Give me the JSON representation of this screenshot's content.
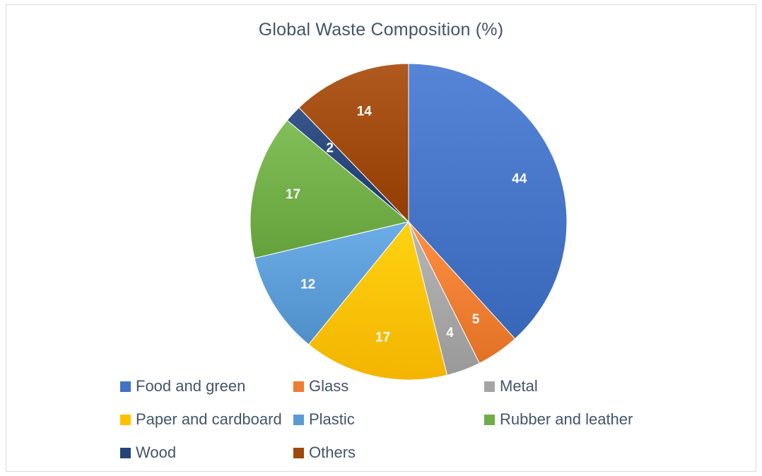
{
  "chart_data": {
    "type": "pie",
    "title": "Global Waste Composition (%)",
    "categories": [
      "Food and green",
      "Glass",
      "Metal",
      "Paper and cardboard",
      "Plastic",
      "Rubber and leather",
      "Wood",
      "Others"
    ],
    "values": [
      44,
      5,
      4,
      17,
      12,
      17,
      2,
      14
    ],
    "colors": [
      "#4472c4",
      "#ed7d31",
      "#a5a5a5",
      "#ffc000",
      "#5b9bd5",
      "#70ad47",
      "#264478",
      "#9e480e"
    ],
    "data_labels": [
      "44",
      "5",
      "4",
      "17",
      "12",
      "17",
      "2",
      "14"
    ],
    "legend_position": "bottom",
    "start_angle_deg": 0,
    "direction": "clockwise"
  }
}
